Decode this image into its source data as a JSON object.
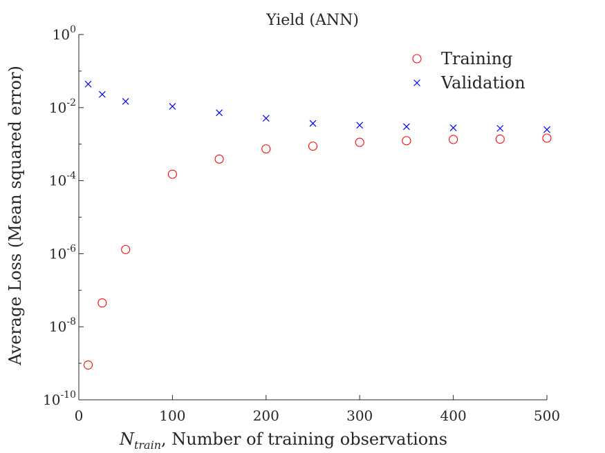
{
  "chart_data": {
    "type": "scatter",
    "title": "Yield (ANN)",
    "xlabel_var": "N",
    "xlabel_sub": "train",
    "xlabel_rest": ", Number of training observations",
    "ylabel": "Average Loss (Mean squared error)",
    "xlim": [
      0,
      500
    ],
    "ylim": [
      1e-10,
      1
    ],
    "yscale": "log",
    "grid": false,
    "legend_position": "top-right",
    "x_ticks": [
      0,
      100,
      200,
      300,
      400,
      500
    ],
    "y_ticks": [
      {
        "mantissa": "10",
        "exponent": "0",
        "value": 1
      },
      {
        "mantissa": "10",
        "exponent": "-2",
        "value": 0.01
      },
      {
        "mantissa": "10",
        "exponent": "-4",
        "value": 0.0001
      },
      {
        "mantissa": "10",
        "exponent": "-6",
        "value": 1e-06
      },
      {
        "mantissa": "10",
        "exponent": "-8",
        "value": 1e-08
      },
      {
        "mantissa": "10",
        "exponent": "-10",
        "value": 1e-10
      }
    ],
    "series": [
      {
        "name": "Training",
        "marker": "circle",
        "color": "#ff0000",
        "x": [
          10,
          25,
          50,
          100,
          150,
          200,
          250,
          300,
          350,
          400,
          450,
          500
        ],
        "y": [
          9e-10,
          4.5e-08,
          1.3e-06,
          0.00015,
          0.00039,
          0.00074,
          0.00088,
          0.00112,
          0.00124,
          0.00134,
          0.00137,
          0.00146
        ]
      },
      {
        "name": "Validation",
        "marker": "x",
        "color": "#0000ff",
        "x": [
          10,
          25,
          50,
          100,
          150,
          200,
          250,
          300,
          350,
          400,
          450,
          500
        ],
        "y": [
          0.044,
          0.023,
          0.0148,
          0.0108,
          0.0072,
          0.0051,
          0.0037,
          0.0033,
          0.003,
          0.0028,
          0.0027,
          0.0025
        ]
      }
    ]
  }
}
